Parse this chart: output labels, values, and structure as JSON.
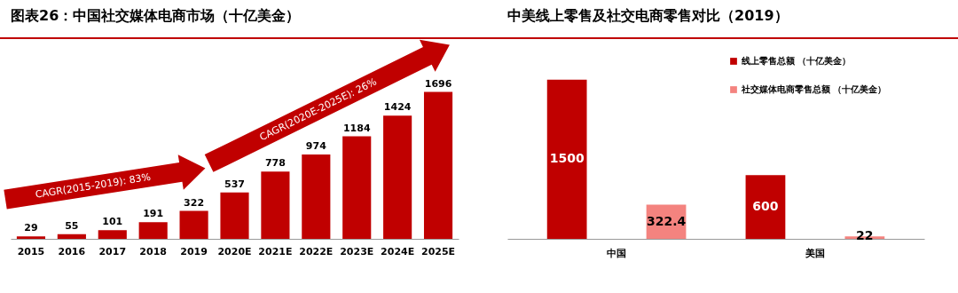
{
  "chart_data": [
    {
      "type": "bar",
      "title": "图表26：中国社交媒体电商市场（十亿美金）",
      "categories": [
        "2015",
        "2016",
        "2017",
        "2018",
        "2019",
        "2020E",
        "2021E",
        "2022E",
        "2023E",
        "2024E",
        "2025E"
      ],
      "values": [
        29,
        55,
        101,
        191,
        322,
        537,
        778,
        974,
        1184,
        1424,
        1696
      ],
      "color": "#c00000",
      "data_labels": true,
      "annotations": [
        "CAGR(2015-2019): 83%",
        "CAGR(2020E-2025E): 26%"
      ]
    },
    {
      "type": "bar",
      "title": "中美线上零售及社交电商零售对比（2019）",
      "categories": [
        "中国",
        "美国"
      ],
      "series": [
        {
          "name": "线上零售总额 （十亿美金）",
          "color": "#c00000",
          "values": [
            1500,
            600
          ]
        },
        {
          "name": "社交媒体电商零售总额 （十亿美金）",
          "color": "#f4837f",
          "values": [
            322.4,
            22
          ]
        }
      ],
      "data_labels": true,
      "legend": "top right"
    }
  ]
}
